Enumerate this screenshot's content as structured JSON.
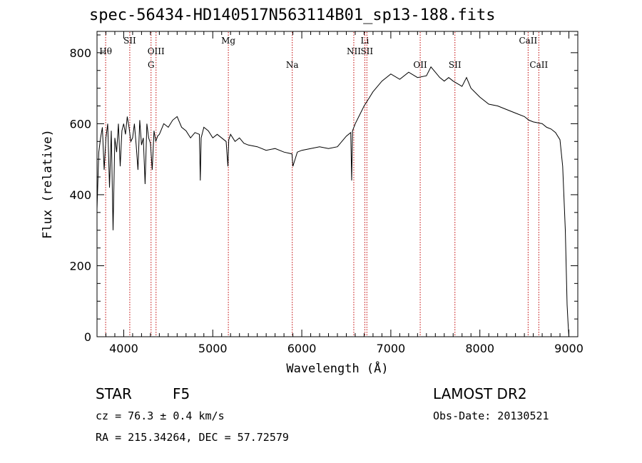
{
  "chart_data": {
    "type": "line",
    "title": "spec-56434-HD140517N563114B01_sp13-188.fits",
    "xlabel": "Wavelength (Å)",
    "ylabel": "Flux (relative)",
    "xlim": [
      3700,
      9100
    ],
    "ylim": [
      0,
      860
    ],
    "xticks": [
      4000,
      5000,
      6000,
      7000,
      8000,
      9000
    ],
    "yticks": [
      0,
      200,
      400,
      600,
      800
    ],
    "grid": false,
    "series": [
      {
        "x": [
          3700,
          3720,
          3740,
          3760,
          3780,
          3800,
          3820,
          3840,
          3860,
          3880,
          3900,
          3920,
          3940,
          3960,
          3980,
          4000,
          4020,
          4040,
          4060,
          4080,
          4100,
          4120,
          4140,
          4160,
          4180,
          4200,
          4220,
          4240,
          4260,
          4280,
          4300,
          4320,
          4340,
          4360,
          4380,
          4400,
          4450,
          4500,
          4550,
          4600,
          4650,
          4700,
          4750,
          4800,
          4850,
          4860,
          4870,
          4900,
          4950,
          5000,
          5050,
          5100,
          5150,
          5170,
          5180,
          5200,
          5250,
          5300,
          5350,
          5400,
          5500,
          5600,
          5700,
          5800,
          5890,
          5900,
          5950,
          6000,
          6100,
          6200,
          6300,
          6400,
          6500,
          6550,
          6560,
          6570,
          6600,
          6650,
          6700,
          6750,
          6800,
          6900,
          7000,
          7100,
          7200,
          7300,
          7400,
          7450,
          7500,
          7550,
          7600,
          7650,
          7700,
          7800,
          7850,
          7900,
          8000,
          8100,
          8200,
          8300,
          8400,
          8500,
          8550,
          8600,
          8700,
          8750,
          8800,
          8850,
          8900,
          8930,
          8960,
          8980,
          8990,
          9000
        ],
        "y": [
          360,
          520,
          560,
          590,
          470,
          560,
          600,
          420,
          580,
          300,
          560,
          520,
          600,
          480,
          580,
          600,
          570,
          620,
          590,
          550,
          560,
          600,
          540,
          470,
          610,
          540,
          560,
          430,
          600,
          560,
          545,
          470,
          580,
          550,
          565,
          570,
          600,
          590,
          610,
          620,
          590,
          580,
          560,
          575,
          570,
          440,
          560,
          590,
          580,
          560,
          570,
          560,
          550,
          480,
          555,
          570,
          550,
          560,
          545,
          540,
          535,
          525,
          530,
          520,
          515,
          480,
          520,
          525,
          530,
          535,
          530,
          535,
          565,
          575,
          440,
          580,
          600,
          625,
          650,
          670,
          690,
          720,
          740,
          725,
          745,
          730,
          735,
          760,
          745,
          730,
          720,
          730,
          720,
          705,
          730,
          700,
          675,
          655,
          650,
          640,
          630,
          620,
          610,
          605,
          600,
          590,
          585,
          575,
          555,
          480,
          300,
          90,
          40,
          0
        ]
      }
    ],
    "annotations": [
      "Hθ",
      "SII",
      "OIII",
      "G",
      "Mg",
      "Na",
      "Li",
      "NII",
      "SII",
      "OII",
      "SII",
      "CaII",
      "CaII"
    ],
    "annotation_lines": [
      {
        "label": "Hθ",
        "x": 3797,
        "row": 1
      },
      {
        "label": "SII",
        "x": 4068,
        "row": 0
      },
      {
        "label": "OIII",
        "x": 4363,
        "row": 1
      },
      {
        "label": "G",
        "x": 4307,
        "row": 2
      },
      {
        "label": "Mg",
        "x": 5175,
        "row": 0
      },
      {
        "label": "Na",
        "x": 5893,
        "row": 2
      },
      {
        "label": "Li",
        "x": 6708,
        "row": 0
      },
      {
        "label": "NII",
        "x": 6584,
        "row": 1
      },
      {
        "label": "SII",
        "x": 6731,
        "row": 1
      },
      {
        "label": "OII",
        "x": 7330,
        "row": 2
      },
      {
        "label": "SII",
        "x": 7720,
        "row": 2
      },
      {
        "label": "CaII",
        "x": 8542,
        "row": 0
      },
      {
        "label": "CaII",
        "x": 8662,
        "row": 2
      }
    ]
  },
  "info": {
    "object_class": "STAR",
    "subclass": "F5",
    "survey": "LAMOST DR2",
    "cz": "cz = 76.3 ± 0.4 km/s",
    "obs_date": "Obs-Date: 20130521",
    "radec": "RA = 215.34264, DEC =  57.72579"
  }
}
